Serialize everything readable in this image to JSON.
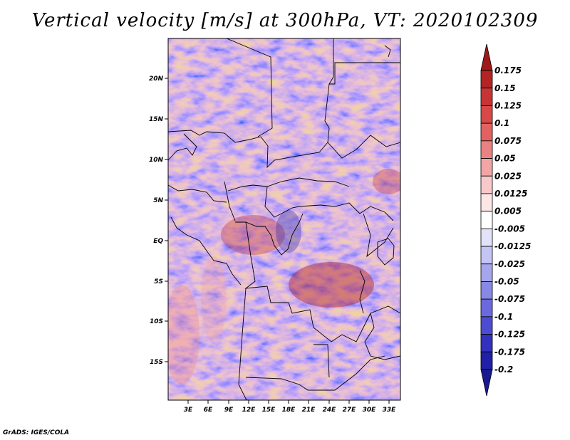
{
  "title": "Vertical velocity [m/s] at 300hPa, VT: 2020102309",
  "credit": "GrADS: IGES/COLA",
  "map": {
    "lat_labels": [
      "20N",
      "15N",
      "10N",
      "5N",
      "EQ",
      "5S",
      "10S",
      "15S"
    ],
    "lon_labels": [
      "3E",
      "6E",
      "9E",
      "12E",
      "15E",
      "18E",
      "21E",
      "24E",
      "27E",
      "30E",
      "33E"
    ]
  },
  "colorbar": {
    "labels": [
      "0.175",
      "0.15",
      "0.125",
      "0.1",
      "0.075",
      "0.05",
      "0.025",
      "0.0125",
      "0.005",
      "-0.005",
      "-0.0125",
      "-0.025",
      "-0.05",
      "-0.075",
      "-0.1",
      "-0.125",
      "-0.175",
      "-0.2"
    ],
    "colors": [
      "#a01818",
      "#b52424",
      "#c83434",
      "#d84848",
      "#e26262",
      "#eb8282",
      "#f3a4a4",
      "#f9c8c8",
      "#fde6e6",
      "#ffffff",
      "#e2e2fb",
      "#c4c4f5",
      "#a6a6ee",
      "#8888e6",
      "#6a6ade",
      "#4c4cd2",
      "#3232be",
      "#2020a8",
      "#1a1a90"
    ]
  }
}
